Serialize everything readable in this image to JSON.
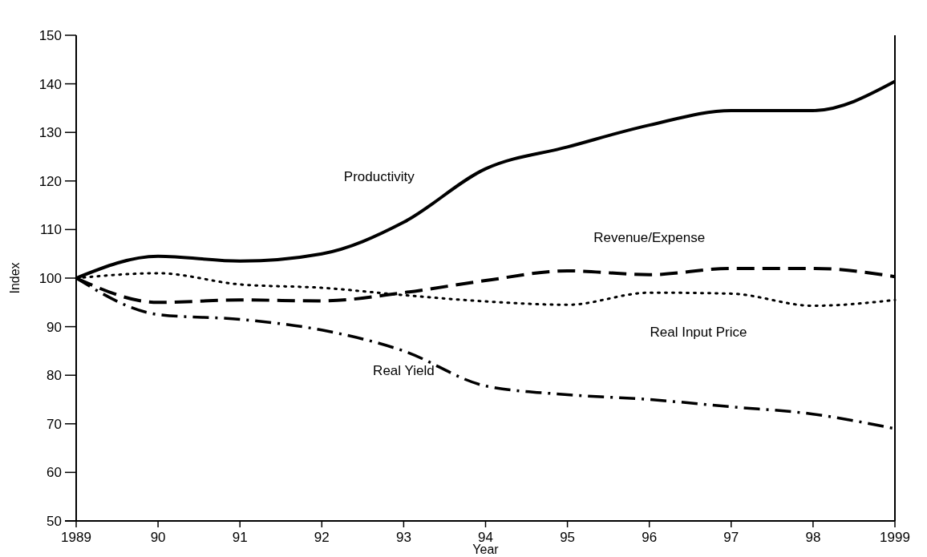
{
  "chart_data": {
    "type": "line",
    "xlabel": "Year",
    "ylabel": "Index",
    "x": [
      1989,
      1990,
      1991,
      1992,
      1993,
      1994,
      1995,
      1996,
      1997,
      1998,
      1999
    ],
    "xlim": [
      1989,
      1999
    ],
    "xticks": [
      1989,
      {
        "value": 1990,
        "label": "90"
      },
      {
        "value": 1991,
        "label": "91"
      },
      {
        "value": 1992,
        "label": "92"
      },
      {
        "value": 1993,
        "label": "93"
      },
      {
        "value": 1994,
        "label": "94"
      },
      {
        "value": 1995,
        "label": "95"
      },
      {
        "value": 1996,
        "label": "96"
      },
      {
        "value": 1997,
        "label": "97"
      },
      {
        "value": 1998,
        "label": "98"
      },
      1999
    ],
    "ylim": [
      50,
      150
    ],
    "yticks": [
      50,
      60,
      70,
      80,
      90,
      100,
      110,
      120,
      130,
      140,
      150
    ],
    "grid": false,
    "legend": false,
    "marker": "none",
    "series": [
      {
        "name": "Productivity",
        "color": "#000000",
        "line_style": "solid",
        "values": [
          100,
          104.5,
          103.5,
          105,
          111.5,
          122.5,
          127,
          131.5,
          134.5,
          134.5,
          140.5
        ]
      },
      {
        "name": "Revenue/Expense",
        "color": "#000000",
        "line_style": "dashed",
        "values": [
          100,
          95,
          95.5,
          95.3,
          97,
          99.5,
          101.5,
          100.7,
          102,
          102,
          100.3
        ]
      },
      {
        "name": "Real Input Price",
        "color": "#000000",
        "line_style": "dotted",
        "values": [
          100,
          101,
          98.7,
          98,
          96.5,
          95.2,
          94.5,
          97,
          96.8,
          94.3,
          95.5
        ]
      },
      {
        "name": "Real Yield",
        "color": "#000000",
        "line_style": "dashdot",
        "values": [
          100,
          92.5,
          91.5,
          89.3,
          85,
          77.8,
          76,
          75,
          73.5,
          72,
          69
        ]
      }
    ]
  }
}
